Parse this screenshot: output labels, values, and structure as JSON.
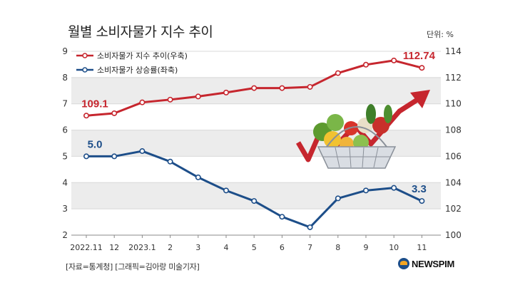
{
  "title": "월별 소비자물가 지수 추이",
  "unit_label": "단위: %",
  "source": "[자료=통계청] [그래픽=김아랑 미술기자]",
  "brand": {
    "name": "NEWSPIM",
    "icon": "newspim-logo-icon"
  },
  "colors": {
    "index_line": "#c6262e",
    "rate_line": "#1d4e89",
    "grid": "#d8d8d8",
    "band": "#ececec"
  },
  "chart_data": {
    "type": "line",
    "categories": [
      "2022.11",
      "12",
      "2023.1",
      "2",
      "3",
      "4",
      "5",
      "6",
      "7",
      "8",
      "9",
      "10",
      "11"
    ],
    "series": [
      {
        "name": "소비자물가 지수 추이(우축)",
        "axis": "right",
        "values": [
          109.1,
          109.28,
          110.11,
          110.32,
          110.56,
          110.86,
          111.2,
          111.2,
          111.29,
          112.34,
          112.98,
          113.3,
          112.74
        ],
        "start_label": "109.1",
        "end_label": "112.74"
      },
      {
        "name": "소비자물가 상승률(좌축)",
        "axis": "left",
        "values": [
          5.0,
          5.0,
          5.2,
          4.8,
          4.2,
          3.7,
          3.3,
          2.7,
          2.3,
          3.4,
          3.7,
          3.8,
          3.3
        ],
        "start_label": "5.0",
        "end_label": "3.3"
      }
    ],
    "y_left": {
      "min": 2,
      "max": 9,
      "ticks": [
        "2",
        "3",
        "4",
        "5",
        "6",
        "7",
        "8",
        "9"
      ]
    },
    "y_right": {
      "min": 100,
      "max": 114,
      "ticks": [
        "100",
        "102",
        "104",
        "106",
        "108",
        "110",
        "112",
        "114"
      ]
    },
    "legend_position": "top-left",
    "grid": "horizontal"
  }
}
